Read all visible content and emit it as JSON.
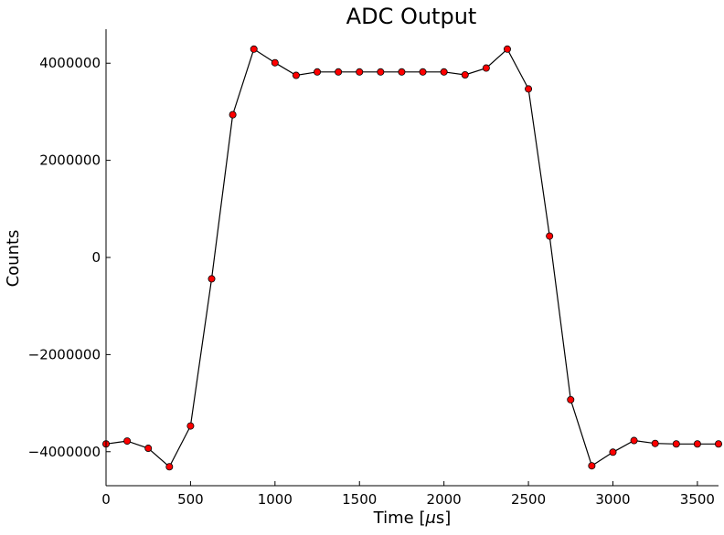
{
  "chart_data": {
    "type": "line",
    "title": "ADC Output",
    "xlabel_prefix": "Time [",
    "xlabel_unit": "μ",
    "xlabel_suffix": "s]",
    "ylabel": "Counts",
    "xlim": [
      0,
      3625
    ],
    "ylim": [
      -4700000,
      4700000
    ],
    "xticks": [
      0,
      500,
      1000,
      1500,
      2000,
      2500,
      3000,
      3500
    ],
    "xtick_labels": [
      "0",
      "500",
      "1000",
      "1500",
      "2000",
      "2500",
      "3000",
      "3500"
    ],
    "yticks": [
      4000000,
      2000000,
      0,
      -2000000,
      -4000000
    ],
    "ytick_labels": [
      "4000000",
      "2000000",
      "0",
      "−2000000",
      "−4000000"
    ],
    "grid": false,
    "series": [
      {
        "line_color": "#000000",
        "marker_color": "#ff0000",
        "x": [
          0,
          125,
          250,
          375,
          500,
          625,
          750,
          875,
          1000,
          1125,
          1250,
          1375,
          1500,
          1625,
          1750,
          1875,
          2000,
          2125,
          2250,
          2375,
          2500,
          2625,
          2750,
          2875,
          3000,
          3125,
          3250,
          3375,
          3500,
          3625
        ],
        "y": [
          -3840000,
          -3780000,
          -3930000,
          -4310000,
          -3470000,
          -440000,
          2940000,
          4290000,
          4010000,
          3750000,
          3820000,
          3820000,
          3820000,
          3820000,
          3820000,
          3820000,
          3820000,
          3760000,
          3900000,
          4290000,
          3470000,
          440000,
          -2930000,
          -4290000,
          -4010000,
          -3770000,
          -3830000,
          -3840000,
          -3840000,
          -3840000
        ]
      }
    ]
  }
}
